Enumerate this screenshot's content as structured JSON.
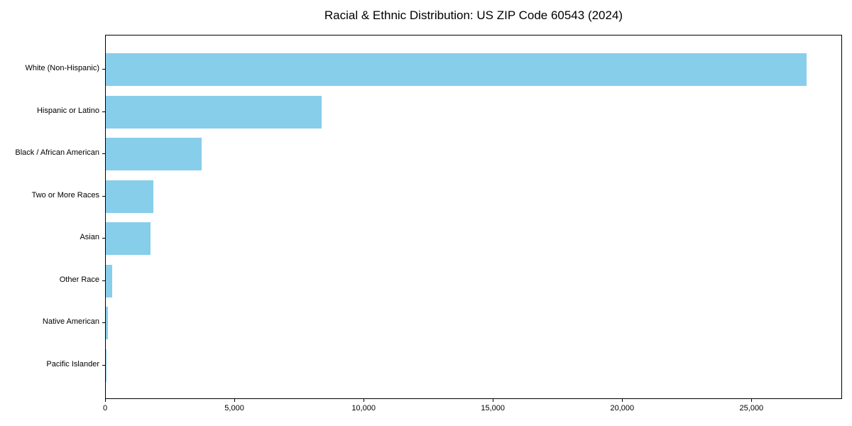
{
  "title": "Racial & Ethnic Distribution: US ZIP Code 60543 (2024)",
  "colors": {
    "bar": "#87CEEB",
    "axis": "#000000",
    "background": "#FFFFFF",
    "text": "#000000"
  },
  "chart_data": {
    "type": "bar",
    "orientation": "horizontal",
    "title": "Racial & Ethnic Distribution: US ZIP Code 60543 (2024)",
    "categories": [
      "White (Non-Hispanic)",
      "Hispanic or Latino",
      "Black / African American",
      "Two or More Races",
      "Asian",
      "Other Race",
      "Native American",
      "Pacific Islander"
    ],
    "values": [
      27100,
      8350,
      3700,
      1840,
      1730,
      250,
      70,
      10
    ],
    "xlabel": "",
    "ylabel": "",
    "xlim": [
      0,
      28450
    ],
    "xticks": [
      0,
      5000,
      10000,
      15000,
      20000,
      25000
    ],
    "xtick_labels": [
      "0",
      "5,000",
      "10,000",
      "15,000",
      "20,000",
      "25,000"
    ],
    "bar_color": "#87CEEB",
    "grid": false,
    "legend": null
  }
}
